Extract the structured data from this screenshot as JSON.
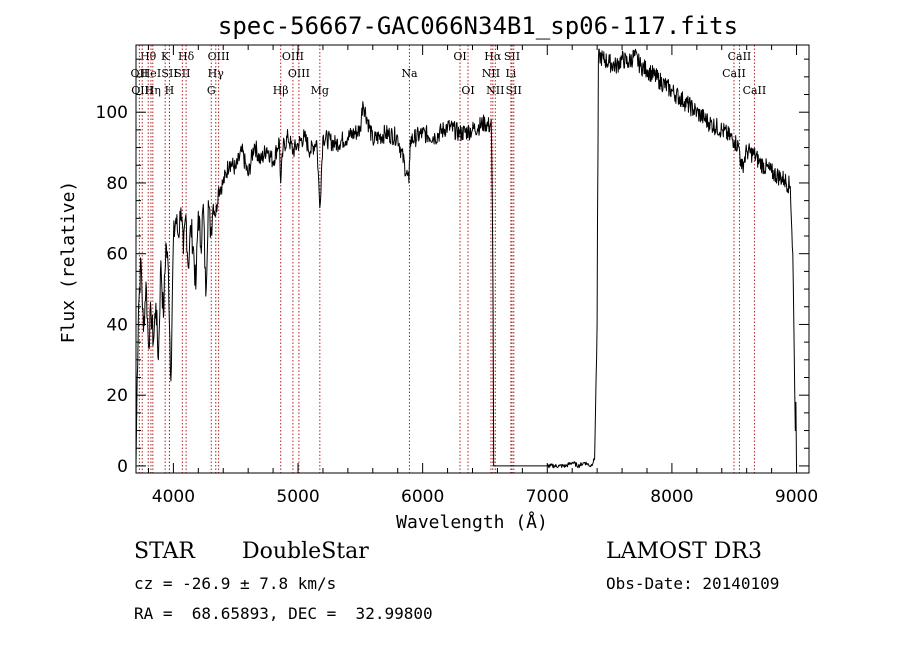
{
  "chart_data": {
    "type": "line",
    "title": "spec-56667-GAC066N34B1_sp06-117.fits",
    "xlabel": "Wavelength (Å)",
    "ylabel": "Flux (relative)",
    "xlim": [
      3700,
      9100
    ],
    "ylim": [
      -2,
      119
    ],
    "xticks": [
      4000,
      5000,
      6000,
      7000,
      8000,
      9000
    ],
    "yticks": [
      0,
      20,
      40,
      60,
      80,
      100
    ],
    "xtick_labels": [
      "4000",
      "5000",
      "6000",
      "7000",
      "8000",
      "9000"
    ],
    "ytick_labels": [
      "0",
      "20",
      "40",
      "60",
      "80",
      "100"
    ],
    "grid": false,
    "line_color": "#000000",
    "marker_color": "#b22222",
    "series": [
      {
        "name": "spectrum",
        "x": [
          3700,
          3710,
          3720,
          3740,
          3760,
          3780,
          3800,
          3820,
          3840,
          3860,
          3880,
          3900,
          3920,
          3940,
          3960,
          3980,
          4000,
          4020,
          4040,
          4060,
          4080,
          4100,
          4120,
          4140,
          4160,
          4180,
          4200,
          4220,
          4240,
          4260,
          4280,
          4300,
          4320,
          4340,
          4360,
          4400,
          4450,
          4500,
          4550,
          4600,
          4650,
          4700,
          4750,
          4800,
          4850,
          4861,
          4880,
          4920,
          4960,
          5000,
          5050,
          5100,
          5150,
          5175,
          5200,
          5300,
          5400,
          5500,
          5520,
          5600,
          5700,
          5800,
          5890,
          5900,
          6000,
          6100,
          6200,
          6300,
          6400,
          6500,
          6540,
          6550,
          6560,
          6565,
          6570,
          6580,
          6600,
          7000,
          7100,
          7150,
          7200,
          7250,
          7300,
          7350,
          7380,
          7400,
          7410,
          7420,
          7450,
          7500,
          7550,
          7600,
          7650,
          7700,
          7750,
          7800,
          7900,
          8000,
          8100,
          8200,
          8300,
          8400,
          8500,
          8540,
          8560,
          8600,
          8660,
          8700,
          8800,
          8900,
          8950,
          8970,
          8990,
          8995,
          9000
        ],
        "y": [
          0,
          25,
          45,
          58,
          38,
          52,
          34,
          44,
          35,
          46,
          30,
          58,
          42,
          63,
          55,
          24,
          64,
          70,
          65,
          73,
          60,
          71,
          56,
          68,
          62,
          50,
          72,
          62,
          74,
          48,
          75,
          66,
          74,
          71,
          78,
          80,
          86,
          84,
          89,
          82,
          91,
          86,
          90,
          86,
          92,
          80,
          90,
          93,
          89,
          91,
          93,
          89,
          92,
          73,
          93,
          91,
          93,
          95,
          103,
          92,
          94,
          93,
          80,
          92,
          94,
          93,
          96,
          94,
          95,
          97,
          96,
          98,
          72,
          45,
          0,
          0,
          0,
          0,
          0,
          0,
          1,
          0,
          1,
          0,
          2,
          40,
          115,
          116,
          115,
          114,
          113,
          115,
          114,
          116,
          113,
          112,
          109,
          106,
          103,
          100,
          97,
          95,
          92,
          90,
          84,
          89,
          88,
          86,
          83,
          81,
          79,
          60,
          10,
          18,
          0
        ]
      }
    ],
    "line_markers": [
      {
        "name": "OII",
        "wavelength": 3727,
        "row": 1
      },
      {
        "name": "Hθ",
        "wavelength": 3798,
        "row": 0
      },
      {
        "name": "OIII",
        "wavelength": 3750,
        "row": 2
      },
      {
        "name": "HeI",
        "wavelength": 3820,
        "row": 1
      },
      {
        "name": "Hη",
        "wavelength": 3835,
        "row": 2
      },
      {
        "name": "K",
        "wavelength": 3934,
        "row": 0
      },
      {
        "name": "SII",
        "wavelength": 3969,
        "row": 1
      },
      {
        "name": "H",
        "wavelength": 3968,
        "row": 2
      },
      {
        "name": "Hδ",
        "wavelength": 4102,
        "row": 0
      },
      {
        "name": "SII",
        "wavelength": 4072,
        "row": 1
      },
      {
        "name": "OIII",
        "wavelength": 4363,
        "row": 0
      },
      {
        "name": "Hγ",
        "wavelength": 4340,
        "row": 1
      },
      {
        "name": "G",
        "wavelength": 4304,
        "row": 2
      },
      {
        "name": "OIII",
        "wavelength": 4959,
        "row": 0
      },
      {
        "name": "OIII",
        "wavelength": 5007,
        "row": 1
      },
      {
        "name": "Hβ",
        "wavelength": 4861,
        "row": 2
      },
      {
        "name": "Mg",
        "wavelength": 5175,
        "row": 2
      },
      {
        "name": "Na",
        "wavelength": 5894,
        "row": 1
      },
      {
        "name": "OI",
        "wavelength": 6300,
        "row": 0
      },
      {
        "name": "OI",
        "wavelength": 6364,
        "row": 2
      },
      {
        "name": "Hα",
        "wavelength": 6563,
        "row": 0
      },
      {
        "name": "SII",
        "wavelength": 6717,
        "row": 0
      },
      {
        "name": "NII",
        "wavelength": 6548,
        "row": 1
      },
      {
        "name": "Li",
        "wavelength": 6708,
        "row": 1
      },
      {
        "name": "NII",
        "wavelength": 6583,
        "row": 2
      },
      {
        "name": "SII",
        "wavelength": 6731,
        "row": 2
      },
      {
        "name": "CaII",
        "wavelength": 8542,
        "row": 0
      },
      {
        "name": "CaII",
        "wavelength": 8498,
        "row": 1
      },
      {
        "name": "CaII",
        "wavelength": 8662,
        "row": 2
      }
    ]
  },
  "info": {
    "class": "STAR",
    "subclass": "DoubleStar",
    "survey": "LAMOST DR3",
    "cz": "cz = -26.9 ± 7.8 km/s",
    "obs_date": "Obs-Date: 20140109",
    "coords": "RA =  68.65893, DEC =  32.99800"
  }
}
